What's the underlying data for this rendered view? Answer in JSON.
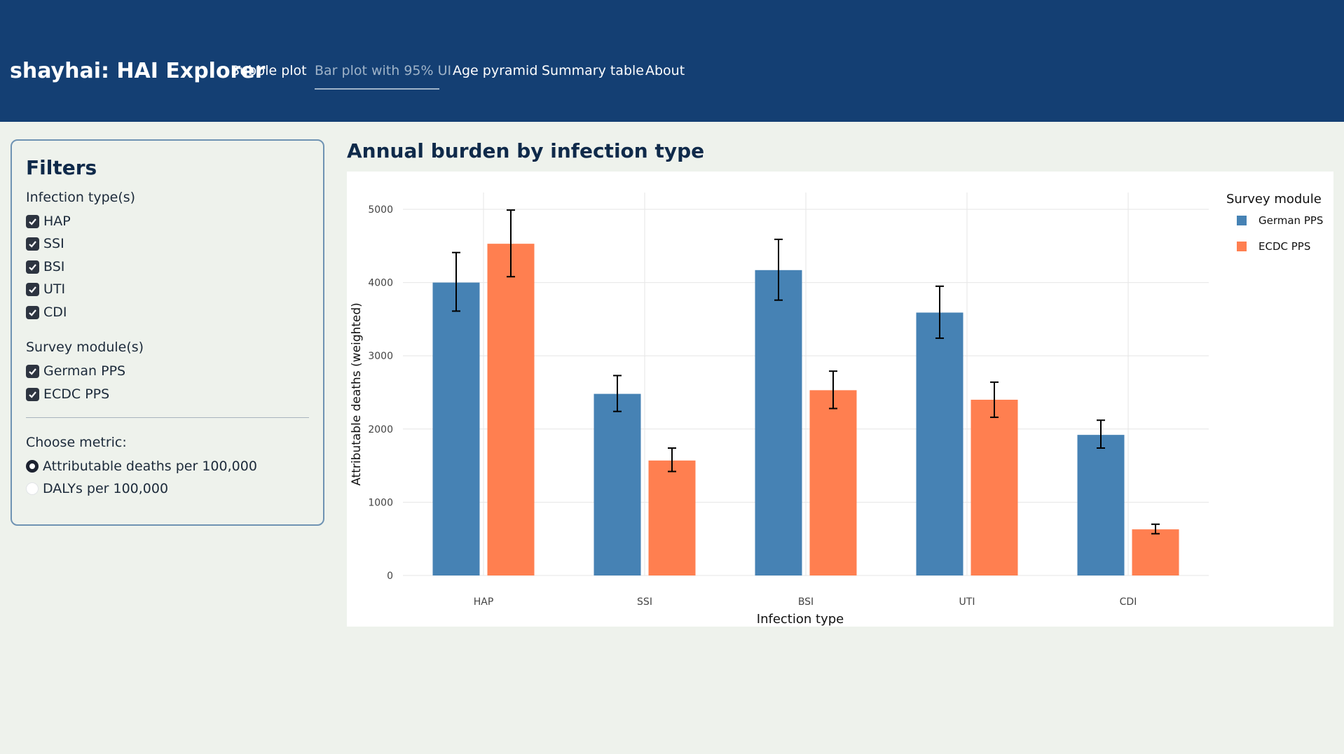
{
  "navbar": {
    "brand": "shayhai: HAI Explorer",
    "links": [
      {
        "label": "Bubble plot",
        "active": false
      },
      {
        "label": "Bar plot with 95% UI",
        "active": true
      },
      {
        "label": "Age pyramid",
        "active": false
      },
      {
        "label": "Summary table",
        "active": false
      },
      {
        "label": "About",
        "active": false
      }
    ],
    "background": "#143f73"
  },
  "sidebar": {
    "title": "Filters",
    "infection_label": "Infection type(s)",
    "infection_options": [
      {
        "label": "HAP",
        "checked": true
      },
      {
        "label": "SSI",
        "checked": true
      },
      {
        "label": "BSI",
        "checked": true
      },
      {
        "label": "UTI",
        "checked": true
      },
      {
        "label": "CDI",
        "checked": true
      }
    ],
    "module_label": "Survey module(s)",
    "module_options": [
      {
        "label": "German PPS",
        "checked": true
      },
      {
        "label": "ECDC PPS",
        "checked": true
      }
    ],
    "metric_label": "Choose metric:",
    "metric_options": [
      {
        "label": "Attributable deaths per 100,000",
        "selected": true
      },
      {
        "label": "DALYs per 100,000",
        "selected": false
      }
    ]
  },
  "chart_title": "Annual burden by infection type",
  "chart_data": {
    "type": "bar",
    "categories": [
      "HAP",
      "SSI",
      "BSI",
      "UTI",
      "CDI"
    ],
    "series": [
      {
        "name": "German PPS",
        "color": "#4682b4",
        "values": [
          4000,
          2480,
          4170,
          3590,
          1920
        ],
        "lower": [
          3610,
          2240,
          3760,
          3240,
          1740
        ],
        "upper": [
          4410,
          2730,
          4590,
          3950,
          2120
        ]
      },
      {
        "name": "ECDC PPS",
        "color": "#ff7f50",
        "values": [
          4530,
          1570,
          2530,
          2400,
          630
        ],
        "lower": [
          4080,
          1420,
          2280,
          2160,
          570
        ],
        "upper": [
          4990,
          1740,
          2790,
          2640,
          700
        ]
      }
    ],
    "xlabel": "Infection type",
    "ylabel": "Attributable deaths (weighted)",
    "yticks": [
      0,
      1000,
      2000,
      3000,
      4000,
      5000
    ],
    "ylim": [
      0,
      5200
    ],
    "grid": true,
    "legend_title": "Survey module",
    "legend_position": "top-right"
  }
}
